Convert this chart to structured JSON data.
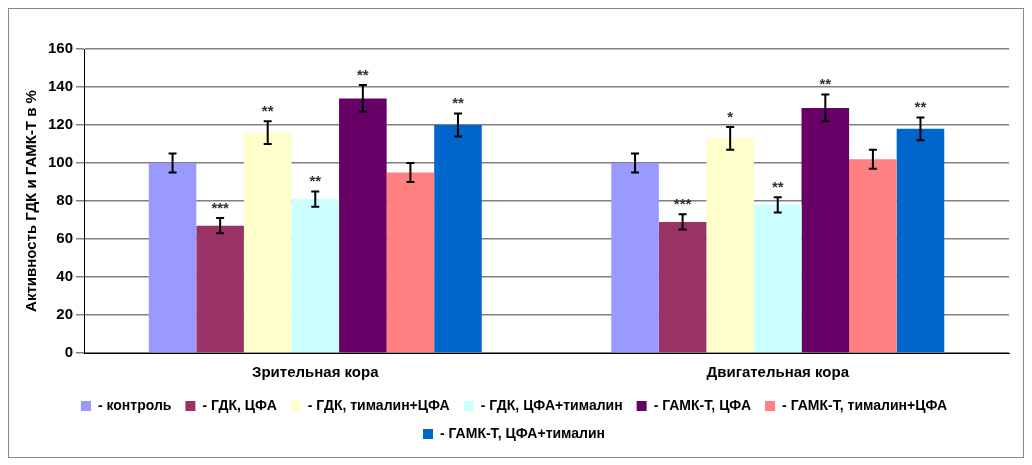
{
  "chart_data": {
    "type": "bar",
    "ylabel": "Активность ГДК и ГАМК-Т в %",
    "categories": [
      "Зрительная кора",
      "Двигательная кора"
    ],
    "series": [
      {
        "name": "- контроль",
        "color": "#9999ff",
        "values": [
          100,
          100
        ],
        "errors": [
          5,
          5
        ]
      },
      {
        "name": "- ГДК, ЦФА",
        "color": "#993366",
        "values": [
          67,
          69
        ],
        "errors": [
          4,
          4
        ],
        "value_labels": [
          "***",
          "***"
        ]
      },
      {
        "name": "- ГДК, тималин+ЦФА",
        "color": "#ffffcc",
        "values": [
          116,
          113
        ],
        "errors": [
          6,
          6
        ],
        "value_labels": [
          "**",
          "*"
        ]
      },
      {
        "name": "- ГДК, ЦФА+тималин",
        "color": "#ccffff",
        "values": [
          81,
          78
        ],
        "errors": [
          4,
          4
        ],
        "value_labels": [
          "**",
          "**"
        ]
      },
      {
        "name": "- ГАМК-Т, ЦФА",
        "color": "#660066",
        "values": [
          134,
          129
        ],
        "errors": [
          7,
          7
        ],
        "value_labels": [
          "**",
          "**"
        ]
      },
      {
        "name": "- ГАМК-Т, тималин+ЦФА",
        "color": "#ff8080",
        "values": [
          95,
          102
        ],
        "errors": [
          5,
          5
        ]
      },
      {
        "name": "- ГАМК-Т, ЦФА+тималин",
        "color": "#0066cc",
        "values": [
          120,
          118
        ],
        "errors": [
          6,
          6
        ],
        "value_labels": [
          "**",
          "**"
        ]
      }
    ],
    "ylim": [
      0,
      160
    ],
    "yticks": [
      0,
      20,
      40,
      60,
      80,
      100,
      120,
      140,
      160
    ],
    "grid": "y",
    "legend": "bottom"
  }
}
